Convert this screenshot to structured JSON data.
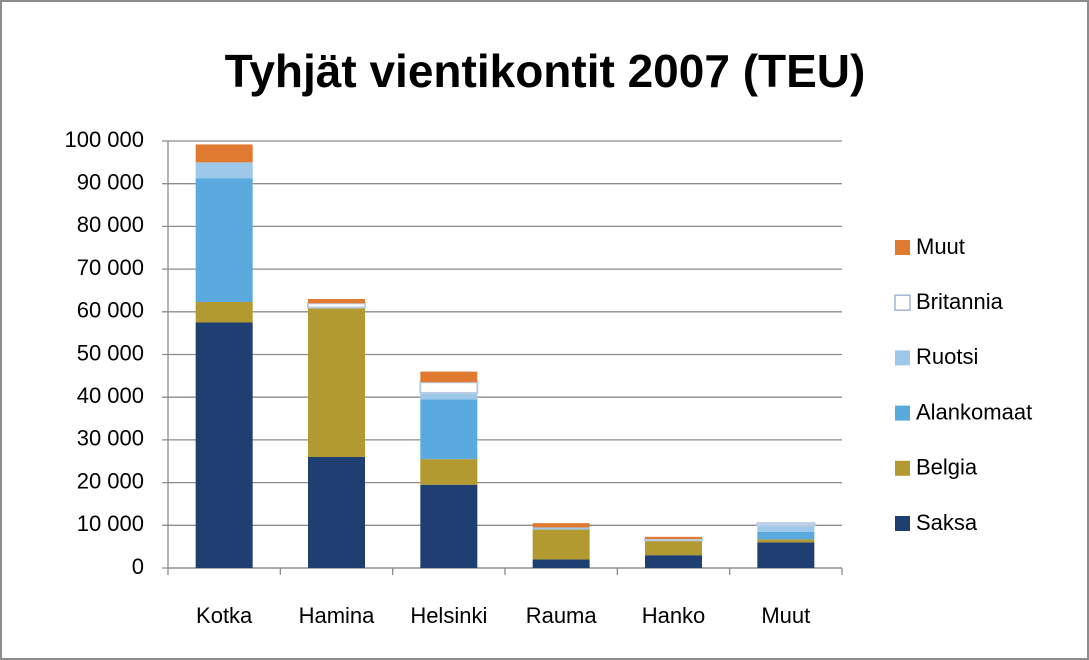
{
  "chart_data": {
    "type": "stacked_bar",
    "title": "Tyhjät vientikontit 2007 (TEU)",
    "categories": [
      "Kotka",
      "Hamina",
      "Helsinki",
      "Rauma",
      "Hanko",
      "Muut"
    ],
    "series": [
      {
        "name": "Saksa",
        "color": "#1f3f73",
        "values": [
          57500,
          26000,
          19500,
          2000,
          3000,
          6000
        ]
      },
      {
        "name": "Belgia",
        "color": "#b39a30",
        "values": [
          4800,
          35000,
          6000,
          7000,
          3500,
          700
        ]
      },
      {
        "name": "Alankomaat",
        "color": "#5aaadf",
        "values": [
          29000,
          0,
          14000,
          0,
          0,
          1800
        ]
      },
      {
        "name": "Ruotsi",
        "color": "#9ec8ea",
        "values": [
          3700,
          0,
          1500,
          500,
          0,
          1500
        ]
      },
      {
        "name": "Britannia",
        "color": "#ffffff",
        "values": [
          0,
          1000,
          2500,
          0,
          300,
          500
        ]
      },
      {
        "name": "Muut",
        "color": "#e07a30",
        "values": [
          4200,
          1000,
          2500,
          1000,
          500,
          0
        ]
      }
    ],
    "ylim": [
      0,
      100000
    ],
    "yticks": [
      0,
      {
        "value": 10000,
        "label": "10 000"
      },
      {
        "value": 20000,
        "label": "20 000"
      },
      {
        "value": 30000,
        "label": "30 000"
      },
      {
        "value": 40000,
        "label": "40 000"
      },
      {
        "value": 50000,
        "label": "50 000"
      },
      {
        "value": 60000,
        "label": "60 000"
      },
      {
        "value": 70000,
        "label": "70 000"
      },
      {
        "value": 80000,
        "label": "80 000"
      },
      {
        "value": 90000,
        "label": "90 000"
      },
      {
        "value": 100000,
        "label": "100 000"
      }
    ],
    "grid": true,
    "legend": "right"
  }
}
